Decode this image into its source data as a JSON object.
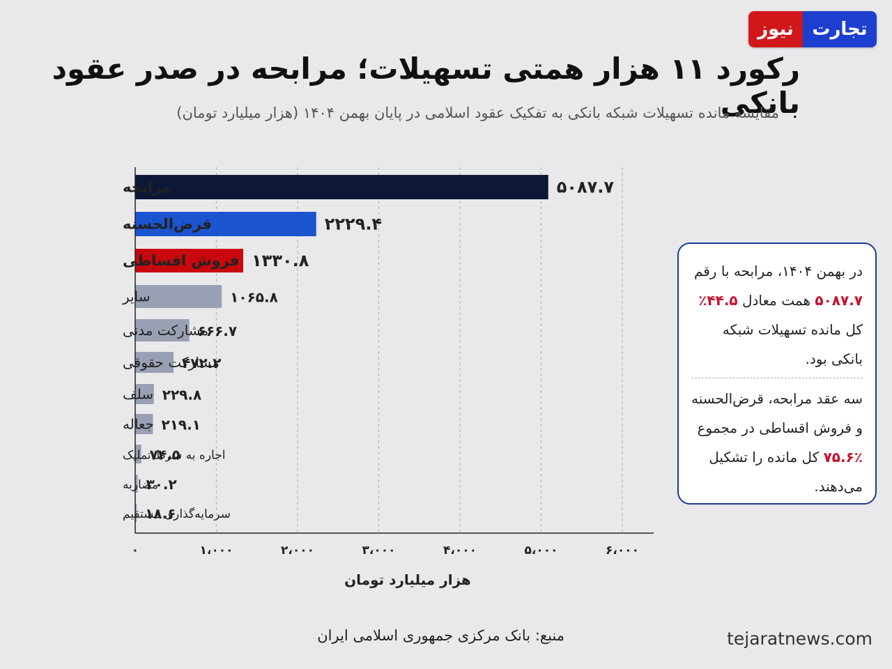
{
  "brand": {
    "part1": "تجارت",
    "part2": "نیوز",
    "color_blue": "#1d3fd0",
    "color_red": "#d2171b"
  },
  "header": {
    "title": "رکورد ۱۱ هزار همتی تسهیلات؛ مرابحه در صدر عقود بانکی",
    "subtitle": "مقایسه مانده تسهیلات شبکه بانکی به تفکیک عقود اسلامی در پایان بهمن ۱۴۰۴ (هزار میلیارد تومان)"
  },
  "chart_data": {
    "type": "bar",
    "orientation": "horizontal",
    "title": "رکورد ۱۱ هزار همتی تسهیلات؛ مرابحه در صدر عقود بانکی",
    "subtitle": "مقایسه مانده تسهیلات شبکه بانکی به تفکیک عقود اسلامی در پایان بهمن ۱۴۰۴ (هزار میلیارد تومان)",
    "xlabel": "هزار میلیارد تومان",
    "ylabel": "",
    "xlim": [
      0,
      6000
    ],
    "grid": "vertical dashed",
    "xticks": [
      0,
      1000,
      2000,
      3000,
      4000,
      5000,
      6000
    ],
    "xtick_labels": [
      "۰",
      "۱،۰۰۰",
      "۲،۰۰۰",
      "۳،۰۰۰",
      "۴،۰۰۰",
      "۵،۰۰۰",
      "۶،۰۰۰"
    ],
    "categories": [
      "مرابحه",
      "قرض‌الحسنه",
      "فروش اقساطی",
      "سایر",
      "مشارکت مدنی",
      "مشارکت حقوقی",
      "سلف",
      "جعاله",
      "اجاره به شرط تملیک",
      "مضاربه",
      "سرمایه‌گذاری مستقیم"
    ],
    "values": [
      5087.7,
      2229.4,
      1330.8,
      1065.8,
      666.7,
      472.2,
      229.8,
      219.1,
      74.5,
      30.2,
      18.6
    ],
    "value_labels": [
      "۵۰۸۷.۷",
      "۲۲۲۹.۴",
      "۱۳۳۰.۸",
      "۱۰۶۵.۸",
      "۶۶۶.۷",
      "۴۷۲.۲",
      "۲۲۹.۸",
      "۲۱۹.۱",
      "۷۴.۵",
      "۳۰.۲",
      "۱۸.۶"
    ],
    "colors": [
      "#0d1836",
      "#1a54cf",
      "#c8080c",
      "#9aa0b4",
      "#9aa0b4",
      "#9aa0b4",
      "#9aa0b4",
      "#9aa0b4",
      "#9aa0b4",
      "#9aa0b4",
      "#9aa0b4"
    ],
    "highlighted": [
      true,
      true,
      true,
      false,
      false,
      false,
      false,
      false,
      false,
      false,
      false
    ]
  },
  "note": {
    "p1_a": "در بهمن ۱۴۰۴، مرابحه با رقم",
    "p1_val": "۵۰۸۷.۷",
    "p1_b": " همت معادل ",
    "p1_pct": "۴۴.۵٪",
    "p1_c": "کل مانده تسهیلات شبکه",
    "p1_d": "بانکی بود.",
    "p2_a": "سه عقد مرابحه، قرض‌الحسنه",
    "p2_b": "و فروش اقساطی در مجموع",
    "p2_pct": "۷۵.۶٪",
    "p2_c": " کل مانده را تشکیل",
    "p2_d": "می‌دهند.",
    "highlight_color": "#c8102e",
    "border_color": "#1d3a8f"
  },
  "footer": {
    "source": "منبع: بانک مرکزی جمهوری اسلامی ایران",
    "site": "tejaratnews.com"
  }
}
